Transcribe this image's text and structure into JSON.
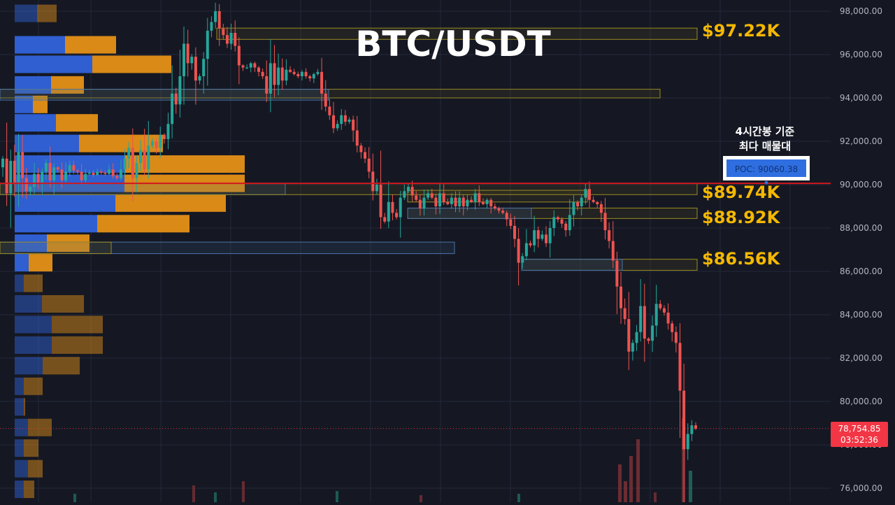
{
  "chart_data": {
    "type": "candlestick",
    "title": "BTC/USDT",
    "y_axis": {
      "position": "right",
      "ticks": [
        "98,000.00",
        "96,000.00",
        "94,000.00",
        "92,000.00",
        "90,000.00",
        "88,000.00",
        "86,000.00",
        "84,000.00",
        "82,000.00",
        "80,000.00",
        "78,000.00",
        "76,000.00"
      ],
      "tick_values": [
        98000,
        96000,
        94000,
        92000,
        90000,
        88000,
        86000,
        84000,
        82000,
        80000,
        78000,
        76000
      ],
      "range": [
        75500,
        98600
      ]
    },
    "current_price": {
      "value": 78754.85,
      "label": "78,754.85",
      "countdown": "03:52:36"
    },
    "poc": {
      "label": "POC: 90060.38",
      "value": 90060.38,
      "caption_line1": "4시간봉 기준",
      "caption_line2": "최다 매물대"
    },
    "price_levels": [
      {
        "label": "$97.22K",
        "value": 97220
      },
      {
        "label": "$89.74K",
        "value": 89740
      },
      {
        "label": "$88.92K",
        "value": 88920
      },
      {
        "label": "$86.56K",
        "value": 86560
      }
    ],
    "zones": [
      {
        "color": "yellow",
        "top": 97220,
        "bottom": 96700,
        "from": 310,
        "to": 997
      },
      {
        "color": "yellow",
        "top": 94400,
        "bottom": 94000,
        "from": 0,
        "to": 944
      },
      {
        "color": "blue",
        "top": 94400,
        "bottom": 93900,
        "from": 0,
        "to": 470
      },
      {
        "color": "blue",
        "top": 90060,
        "bottom": 89540,
        "from": 0,
        "to": 408
      },
      {
        "color": "yellow",
        "top": 90060,
        "bottom": 89540,
        "from": 0,
        "to": 997
      },
      {
        "color": "yellow",
        "top": 89740,
        "bottom": 89200,
        "from": 583,
        "to": 840
      },
      {
        "color": "yellow",
        "top": 88920,
        "bottom": 88440,
        "from": 583,
        "to": 997
      },
      {
        "color": "blue",
        "top": 88920,
        "bottom": 88440,
        "from": 583,
        "to": 760
      },
      {
        "color": "blue",
        "top": 87350,
        "bottom": 86820,
        "from": 0,
        "to": 650
      },
      {
        "color": "yellow",
        "top": 87350,
        "bottom": 86820,
        "from": 0,
        "to": 159
      },
      {
        "color": "yellow",
        "top": 86560,
        "bottom": 86050,
        "from": 746,
        "to": 997
      },
      {
        "color": "blue",
        "top": 86560,
        "bottom": 86050,
        "from": 746,
        "to": 890
      }
    ],
    "volume_profile": [
      {
        "price": 97900,
        "buy": 32,
        "sell": 28,
        "faded": true
      },
      {
        "price": 96450,
        "buy": 72,
        "sell": 73,
        "faded": false
      },
      {
        "price": 95550,
        "buy": 111,
        "sell": 113,
        "faded": false
      },
      {
        "price": 94600,
        "buy": 52,
        "sell": 47,
        "faded": false
      },
      {
        "price": 93700,
        "buy": 26,
        "sell": 21,
        "faded": false
      },
      {
        "price": 92850,
        "buy": 59,
        "sell": 60,
        "faded": false
      },
      {
        "price": 91900,
        "buy": 92,
        "sell": 120,
        "faded": false
      },
      {
        "price": 90950,
        "buy": 157,
        "sell": 172,
        "faded": false
      },
      {
        "price": 90060,
        "buy": 157,
        "sell": 172,
        "faded": false
      },
      {
        "price": 89150,
        "buy": 144,
        "sell": 158,
        "faded": false
      },
      {
        "price": 88200,
        "buy": 118,
        "sell": 132,
        "faded": false
      },
      {
        "price": 87300,
        "buy": 46,
        "sell": 61,
        "faded": false
      },
      {
        "price": 86400,
        "buy": 20,
        "sell": 34,
        "faded": false
      },
      {
        "price": 85450,
        "buy": 13,
        "sell": 27,
        "faded": true
      },
      {
        "price": 84500,
        "buy": 39,
        "sell": 60,
        "faded": true
      },
      {
        "price": 83550,
        "buy": 53,
        "sell": 73,
        "faded": true
      },
      {
        "price": 82600,
        "buy": 53,
        "sell": 73,
        "faded": true
      },
      {
        "price": 81650,
        "buy": 40,
        "sell": 53,
        "faded": true
      },
      {
        "price": 80700,
        "buy": 13,
        "sell": 27,
        "faded": true
      },
      {
        "price": 79750,
        "buy": 13,
        "sell": 2,
        "faded": true
      },
      {
        "price": 78800,
        "buy": 19,
        "sell": 34,
        "faded": true
      },
      {
        "price": 77850,
        "buy": 13,
        "sell": 21,
        "faded": true
      },
      {
        "price": 76900,
        "buy": 19,
        "sell": 21,
        "faded": true
      },
      {
        "price": 75950,
        "buy": 13,
        "sell": 15,
        "faded": true
      }
    ],
    "candle_closes": [
      91200,
      89600,
      91100,
      90100,
      91500,
      90300,
      89700,
      89900,
      90500,
      90100,
      90600,
      91000,
      90200,
      90800,
      90700,
      90200,
      90600,
      90900,
      90650,
      90600,
      90200,
      90500,
      90550,
      90450,
      90600,
      90550,
      90500,
      90700,
      90400,
      90300,
      90700,
      91200,
      91700,
      90300,
      91000,
      91600,
      90700,
      91800,
      92000,
      91700,
      92300,
      92100,
      92800,
      94200,
      93700,
      95000,
      96500,
      95600,
      95900,
      94800,
      95000,
      95800,
      97100,
      97500,
      98000,
      97200,
      96900,
      96500,
      97000,
      96400,
      95500,
      95400,
      95400,
      95600,
      95400,
      95200,
      95000,
      94200,
      95600,
      94600,
      95400,
      94800,
      95300,
      95200,
      95100,
      95000,
      95200,
      95000,
      94900,
      95100,
      95200,
      94200,
      93600,
      93200,
      92600,
      92800,
      93200,
      92900,
      93000,
      92500,
      91800,
      91500,
      91200,
      90600,
      89700,
      90000,
      88500,
      88300,
      89200,
      88700,
      88500,
      89400,
      89700,
      89900,
      89500,
      89300,
      88900,
      89400,
      89600,
      89400,
      89000,
      89600,
      89200,
      89100,
      89400,
      89000,
      89400,
      89000,
      89300,
      89200,
      89600,
      89200,
      89100,
      89300,
      89000,
      88900,
      88800,
      88700,
      88400,
      88100,
      87500,
      86400,
      86700,
      87300,
      87200,
      87900,
      87500,
      87700,
      87300,
      88000,
      88500,
      88400,
      88200,
      87900,
      88600,
      89200,
      89000,
      89400,
      89800,
      89300,
      89200,
      89100,
      88700,
      87900,
      87400,
      86500,
      85300,
      84300,
      83800,
      82300,
      82700,
      83200,
      84400,
      82900,
      82800,
      83500,
      84500,
      84300,
      84100,
      83600,
      83200,
      82700,
      80500,
      77800,
      78500,
      78900,
      78750
    ],
    "candle_x_start": 4,
    "candle_x_end": 995,
    "start_open": 90800,
    "volume_spikes": [
      {
        "value": 0.18,
        "bear": true
      },
      {
        "value": 0.1,
        "bear": true
      },
      {
        "value": 0.22,
        "bear": true
      },
      {
        "value": 0.3,
        "bear": true
      },
      {
        "value": 0.4,
        "bear": true
      },
      {
        "value": 0.15,
        "bear": false
      }
    ],
    "colors": {
      "bull": "#26a69a",
      "bear": "#ef5350",
      "poc_line": "#d0171d",
      "buy_bar": "#2f5fd1",
      "sell_bar": "#d98a17",
      "level_text": "#f5b800",
      "zone_yellow": "#9a8a22",
      "zone_blue": "#4a72a6",
      "grid": "#22283a",
      "axis_text": "#b2b5be",
      "price_tag": "#f23645"
    }
  }
}
